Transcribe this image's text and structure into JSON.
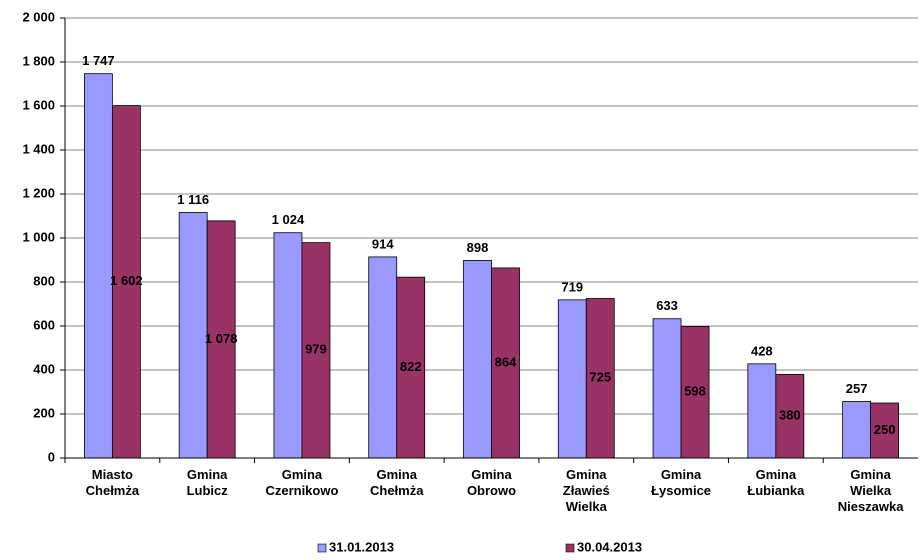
{
  "chart_data": {
    "type": "bar",
    "categories": [
      "Miasto Chełmża",
      "Gmina Lubicz",
      "Gmina Czernikowo",
      "Gmina Chełmża",
      "Gmina Obrowo",
      "Gmina Zławieś Wielka",
      "Gmina Łysomice",
      "Gmina Łubianka",
      "Gmina Wielka Nieszawka"
    ],
    "series": [
      {
        "name": "31.01.2013",
        "color": "#9999ff",
        "values": [
          1747,
          1116,
          1024,
          914,
          898,
          719,
          633,
          428,
          257
        ],
        "value_labels": [
          "1 747",
          "1 116",
          "1 024",
          "914",
          "898",
          "719",
          "633",
          "428",
          "257"
        ]
      },
      {
        "name": "30.04.2013",
        "color": "#993366",
        "values": [
          1602,
          1078,
          979,
          822,
          864,
          725,
          598,
          380,
          250
        ],
        "value_labels": [
          "1 602",
          "1 078",
          "979",
          "822",
          "864",
          "725",
          "598",
          "380",
          "250"
        ]
      }
    ],
    "ylim": [
      0,
      2000
    ],
    "yticks": [
      0,
      200,
      400,
      600,
      800,
      {
        "value": 1000,
        "label": "1 000"
      },
      {
        "value": 1200,
        "label": "1 200"
      },
      {
        "value": 1400,
        "label": "1 400"
      },
      {
        "value": 1600,
        "label": "1 600"
      },
      {
        "value": 1800,
        "label": "1 800"
      },
      {
        "value": 2000,
        "label": "2 000"
      }
    ],
    "grid": true,
    "legend": "bottom"
  }
}
